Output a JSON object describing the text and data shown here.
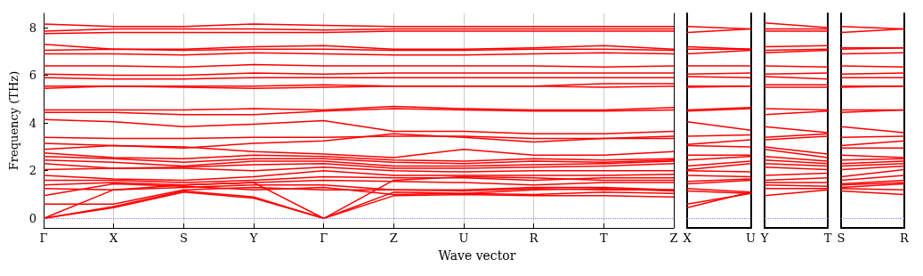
{
  "chart_data": [
    {
      "type": "line",
      "ylabel": "Frequency (THz)",
      "xlabel": "Wave vector",
      "color": "#ff0000",
      "grid": "x",
      "marker": "none",
      "tick_labels": true,
      "categories": [
        "Γ",
        "X",
        "S",
        "Y",
        "Γ",
        "Z",
        "U",
        "R",
        "T",
        "Z"
      ],
      "ylim": [
        -0.4,
        8.6
      ],
      "yticks": [
        0,
        2,
        4,
        6,
        8
      ],
      "ref_lines": [
        {
          "axis": "y",
          "value": 0,
          "color": "#8080ff",
          "line_style": "dotted"
        }
      ],
      "series": [
        {
          "values": [
            8.15,
            8.05,
            8.05,
            8.15,
            8.1,
            8.05,
            8.05,
            8.05,
            8.05,
            8.05
          ]
        },
        {
          "values": [
            7.85,
            7.95,
            7.95,
            7.95,
            7.9,
            7.95,
            7.95,
            7.95,
            7.95,
            7.95
          ]
        },
        {
          "values": [
            7.75,
            7.8,
            7.8,
            7.8,
            7.8,
            7.85,
            7.85,
            7.85,
            7.85,
            7.85
          ]
        },
        {
          "values": [
            7.3,
            7.1,
            7.1,
            7.2,
            7.25,
            7.1,
            7.1,
            7.15,
            7.25,
            7.1
          ]
        },
        {
          "values": [
            7.05,
            7.1,
            7.05,
            7.1,
            7.1,
            7.05,
            7.05,
            7.1,
            7.1,
            7.05
          ]
        },
        {
          "values": [
            6.9,
            6.9,
            6.85,
            6.95,
            6.9,
            6.85,
            6.85,
            6.9,
            6.95,
            6.9
          ]
        },
        {
          "values": [
            6.4,
            6.4,
            6.35,
            6.45,
            6.4,
            6.4,
            6.4,
            6.4,
            6.35,
            6.4
          ]
        },
        {
          "values": [
            6.05,
            6.0,
            6.0,
            6.1,
            6.05,
            6.1,
            6.1,
            6.1,
            6.1,
            6.1
          ]
        },
        {
          "values": [
            5.9,
            5.85,
            5.85,
            5.9,
            5.9,
            5.9,
            5.9,
            5.9,
            5.9,
            5.9
          ]
        },
        {
          "values": [
            5.55,
            5.55,
            5.55,
            5.55,
            5.6,
            5.55,
            5.55,
            5.55,
            5.65,
            5.65
          ]
        },
        {
          "values": [
            5.45,
            5.55,
            5.5,
            5.45,
            5.5,
            5.55,
            5.55,
            5.55,
            5.5,
            5.55
          ]
        },
        {
          "values": [
            4.55,
            4.55,
            4.55,
            4.6,
            4.55,
            4.7,
            4.6,
            4.55,
            4.55,
            4.65
          ]
        },
        {
          "values": [
            4.45,
            4.45,
            4.35,
            4.35,
            4.5,
            4.6,
            4.55,
            4.5,
            4.5,
            4.55
          ]
        },
        {
          "values": [
            4.15,
            4.05,
            3.85,
            3.95,
            4.1,
            3.65,
            3.65,
            3.55,
            3.55,
            3.65
          ]
        },
        {
          "values": [
            3.4,
            3.35,
            3.35,
            3.4,
            3.4,
            3.45,
            3.45,
            3.35,
            3.35,
            3.45
          ]
        },
        {
          "values": [
            3.15,
            3.05,
            2.95,
            3.15,
            3.25,
            3.55,
            3.4,
            3.2,
            3.35,
            3.35
          ]
        },
        {
          "values": [
            2.9,
            3.05,
            3.0,
            2.8,
            2.7,
            2.55,
            2.9,
            2.65,
            2.65,
            2.8
          ]
        },
        {
          "values": [
            2.75,
            2.55,
            2.5,
            2.65,
            2.6,
            2.45,
            2.4,
            2.5,
            2.45,
            2.5
          ]
        },
        {
          "values": [
            2.6,
            2.5,
            2.35,
            2.5,
            2.5,
            2.35,
            2.3,
            2.4,
            2.35,
            2.45
          ]
        },
        {
          "values": [
            2.45,
            2.35,
            2.2,
            2.4,
            2.4,
            2.2,
            2.2,
            2.25,
            2.3,
            2.4
          ]
        },
        {
          "values": [
            2.3,
            2.1,
            2.15,
            2.25,
            2.3,
            2.1,
            2.1,
            2.15,
            2.2,
            2.3
          ]
        },
        {
          "values": [
            2.05,
            2.1,
            2.1,
            2.0,
            2.15,
            2.0,
            1.95,
            2.0,
            2.0,
            2.0
          ]
        },
        {
          "values": [
            1.8,
            1.65,
            1.6,
            1.75,
            2.0,
            1.8,
            1.8,
            1.8,
            1.8,
            1.85
          ]
        },
        {
          "values": [
            1.6,
            1.6,
            1.5,
            1.6,
            1.75,
            1.7,
            1.7,
            1.6,
            1.7,
            1.7
          ]
        },
        {
          "values": [
            1.4,
            1.5,
            1.4,
            1.5,
            1.6,
            1.55,
            1.5,
            1.4,
            1.5,
            1.5
          ]
        },
        {
          "values": [
            1.25,
            1.2,
            1.3,
            1.4,
            1.4,
            1.2,
            1.2,
            1.3,
            1.3,
            1.2
          ]
        },
        {
          "values": [
            0.95,
            1.45,
            1.35,
            1.2,
            1.3,
            1.0,
            1.05,
            1.2,
            1.25,
            1.15
          ]
        },
        {
          "values": [
            0.6,
            0.6,
            1.2,
            1.3,
            1.2,
            1.2,
            1.15,
            1.25,
            1.2,
            1.2
          ]
        },
        {
          "values": [
            0,
            1.2,
            1.4,
            1.5,
            0,
            1.6,
            1.75,
            1.7,
            1.6,
            1.6
          ]
        },
        {
          "values": [
            0,
            0.5,
            1.15,
            0.9,
            0,
            1.1,
            1.05,
            1.0,
            1.1,
            1.05
          ]
        },
        {
          "values": [
            0,
            0.45,
            1.1,
            0.85,
            0,
            0.95,
            1.0,
            0.95,
            0.95,
            0.9
          ]
        }
      ]
    },
    {
      "type": "line",
      "color": "#ff0000",
      "marker": "none",
      "tick_labels": "x",
      "categories": [
        "X",
        "U"
      ],
      "ylim": [
        -0.4,
        8.6
      ],
      "yticks": [
        0,
        2,
        4,
        6,
        8
      ],
      "ref_lines": [
        {
          "axis": "y",
          "value": 0,
          "color": "#8080ff",
          "line_style": "dotted"
        }
      ],
      "series": [
        {
          "values": [
            8.05,
            7.95
          ]
        },
        {
          "values": [
            7.8,
            7.95
          ]
        },
        {
          "values": [
            7.2,
            7.1
          ]
        },
        {
          "values": [
            7.1,
            7.1
          ]
        },
        {
          "values": [
            6.9,
            7.05
          ]
        },
        {
          "values": [
            6.4,
            6.4
          ]
        },
        {
          "values": [
            6.05,
            6.1
          ]
        },
        {
          "values": [
            5.95,
            5.9
          ]
        },
        {
          "values": [
            5.55,
            5.55
          ]
        },
        {
          "values": [
            5.5,
            5.55
          ]
        },
        {
          "values": [
            4.55,
            4.65
          ]
        },
        {
          "values": [
            4.5,
            4.6
          ]
        },
        {
          "values": [
            4.05,
            3.7
          ]
        },
        {
          "values": [
            3.45,
            3.5
          ]
        },
        {
          "values": [
            3.1,
            3.3
          ]
        },
        {
          "values": [
            3.05,
            3.0
          ]
        },
        {
          "values": [
            2.65,
            2.65
          ]
        },
        {
          "values": [
            2.45,
            2.6
          ]
        },
        {
          "values": [
            2.2,
            2.4
          ]
        },
        {
          "values": [
            2.05,
            2.3
          ]
        },
        {
          "values": [
            2.0,
            1.95
          ]
        },
        {
          "values": [
            1.8,
            1.75
          ]
        },
        {
          "values": [
            1.55,
            1.65
          ]
        },
        {
          "values": [
            1.45,
            1.6
          ]
        },
        {
          "values": [
            1.25,
            1.1
          ]
        },
        {
          "values": [
            1.15,
            1.05
          ]
        },
        {
          "values": [
            0.6,
            1.05
          ]
        },
        {
          "values": [
            0.45,
            1.1
          ]
        }
      ]
    },
    {
      "type": "line",
      "color": "#ff0000",
      "marker": "none",
      "tick_labels": "x",
      "categories": [
        "Y",
        "T"
      ],
      "ylim": [
        -0.4,
        8.6
      ],
      "yticks": [
        0,
        2,
        4,
        6,
        8
      ],
      "ref_lines": [
        {
          "axis": "y",
          "value": 0,
          "color": "#8080ff",
          "line_style": "dotted"
        }
      ],
      "series": [
        {
          "values": [
            8.2,
            8.0
          ]
        },
        {
          "values": [
            7.95,
            7.95
          ]
        },
        {
          "values": [
            7.85,
            7.85
          ]
        },
        {
          "values": [
            7.2,
            7.25
          ]
        },
        {
          "values": [
            7.05,
            7.1
          ]
        },
        {
          "values": [
            6.95,
            7.05
          ]
        },
        {
          "values": [
            6.4,
            6.35
          ]
        },
        {
          "values": [
            6.05,
            6.1
          ]
        },
        {
          "values": [
            5.95,
            5.85
          ]
        },
        {
          "values": [
            5.6,
            5.6
          ]
        },
        {
          "values": [
            5.5,
            5.5
          ]
        },
        {
          "values": [
            4.6,
            4.55
          ]
        },
        {
          "values": [
            4.35,
            4.5
          ]
        },
        {
          "values": [
            3.85,
            3.6
          ]
        },
        {
          "values": [
            3.4,
            3.55
          ]
        },
        {
          "values": [
            3.3,
            3.45
          ]
        },
        {
          "values": [
            3.0,
            2.7
          ]
        },
        {
          "values": [
            2.9,
            2.55
          ]
        },
        {
          "values": [
            2.6,
            2.4
          ]
        },
        {
          "values": [
            2.45,
            2.3
          ]
        },
        {
          "values": [
            2.3,
            2.2
          ]
        },
        {
          "values": [
            2.15,
            2.05
          ]
        },
        {
          "values": [
            1.8,
            1.9
          ]
        },
        {
          "values": [
            1.6,
            1.7
          ]
        },
        {
          "values": [
            1.5,
            1.5
          ]
        },
        {
          "values": [
            1.4,
            1.35
          ]
        },
        {
          "values": [
            1.25,
            1.25
          ]
        },
        {
          "values": [
            0.95,
            1.2
          ]
        }
      ]
    },
    {
      "type": "line",
      "color": "#ff0000",
      "marker": "none",
      "tick_labels": "x",
      "categories": [
        "S",
        "R"
      ],
      "ylim": [
        -0.4,
        8.6
      ],
      "yticks": [
        0,
        2,
        4,
        6,
        8
      ],
      "ref_lines": [
        {
          "axis": "y",
          "value": 0,
          "color": "#8080ff",
          "line_style": "dotted"
        }
      ],
      "series": [
        {
          "values": [
            8.05,
            7.95
          ]
        },
        {
          "values": [
            7.8,
            7.95
          ]
        },
        {
          "values": [
            7.15,
            7.15
          ]
        },
        {
          "values": [
            7.1,
            7.15
          ]
        },
        {
          "values": [
            6.9,
            6.95
          ]
        },
        {
          "values": [
            6.4,
            6.35
          ]
        },
        {
          "values": [
            6.05,
            6.1
          ]
        },
        {
          "values": [
            5.9,
            5.9
          ]
        },
        {
          "values": [
            5.55,
            5.55
          ]
        },
        {
          "values": [
            5.5,
            5.55
          ]
        },
        {
          "values": [
            4.55,
            4.55
          ]
        },
        {
          "values": [
            4.45,
            4.55
          ]
        },
        {
          "values": [
            3.85,
            3.6
          ]
        },
        {
          "values": [
            3.4,
            3.45
          ]
        },
        {
          "values": [
            3.05,
            3.25
          ]
        },
        {
          "values": [
            2.95,
            2.95
          ]
        },
        {
          "values": [
            2.65,
            2.55
          ]
        },
        {
          "values": [
            2.45,
            2.5
          ]
        },
        {
          "values": [
            2.3,
            2.4
          ]
        },
        {
          "values": [
            2.2,
            2.3
          ]
        },
        {
          "values": [
            2.05,
            2.2
          ]
        },
        {
          "values": [
            1.75,
            2.05
          ]
        },
        {
          "values": [
            1.6,
            1.8
          ]
        },
        {
          "values": [
            1.45,
            1.6
          ]
        },
        {
          "values": [
            1.4,
            1.5
          ]
        },
        {
          "values": [
            1.3,
            1.45
          ]
        },
        {
          "values": [
            1.15,
            1.0
          ]
        },
        {
          "values": [
            1.25,
            1.2
          ]
        }
      ]
    }
  ]
}
